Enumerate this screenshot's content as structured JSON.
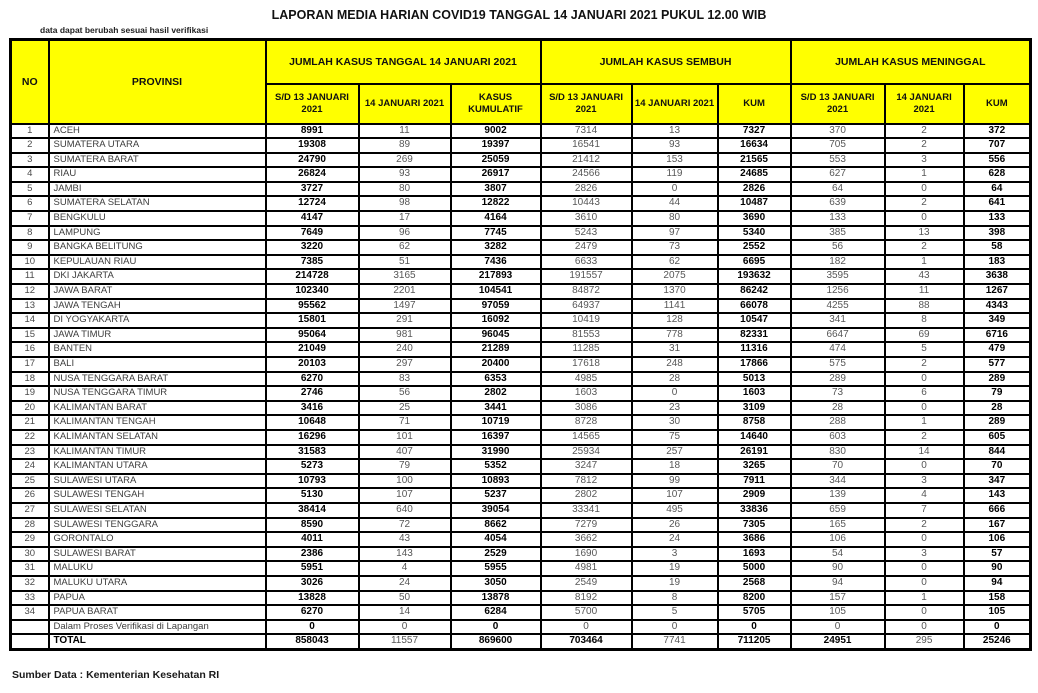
{
  "title": "LAPORAN MEDIA HARIAN COVID19 TANGGAL 14 JANUARI 2021 PUKUL 12.00 WIB",
  "subtitle": "data dapat berubah sesuai hasil verifikasi",
  "footer": "Sumber Data : Kementerian Kesehatan RI",
  "colors": {
    "header_bg": "#FFFF00",
    "border": "#000000",
    "bold_text": "#000000",
    "muted_text": "#575757"
  },
  "table": {
    "col_headers": {
      "no": "NO",
      "provinsi": "PROVINSI",
      "group_kasus": "JUMLAH KASUS TANGGAL 14 JANUARI 2021",
      "group_sembuh": "JUMLAH KASUS SEMBUH",
      "group_meninggal": "JUMLAH KASUS MENINGGAL",
      "sub_sd13": "S/D 13 JANUARI 2021",
      "sub_14jan": "14 JANUARI 2021",
      "sub_kumulatif": "KASUS KUMULATIF",
      "sub_kum": "KUM"
    },
    "value_columns": [
      "sd13_kasus",
      "14jan_kasus",
      "kasus_kumulatif",
      "sd13_sembuh",
      "14jan_sembuh",
      "kum_sembuh",
      "sd13_meninggal",
      "14jan_meninggal",
      "kum_meninggal"
    ],
    "rows": [
      {
        "no": "1",
        "provinsi": "ACEH",
        "values": [
          "8991",
          "11",
          "9002",
          "7314",
          "13",
          "7327",
          "370",
          "2",
          "372"
        ]
      },
      {
        "no": "2",
        "provinsi": "SUMATERA UTARA",
        "values": [
          "19308",
          "89",
          "19397",
          "16541",
          "93",
          "16634",
          "705",
          "2",
          "707"
        ]
      },
      {
        "no": "3",
        "provinsi": "SUMATERA BARAT",
        "values": [
          "24790",
          "269",
          "25059",
          "21412",
          "153",
          "21565",
          "553",
          "3",
          "556"
        ]
      },
      {
        "no": "4",
        "provinsi": "RIAU",
        "values": [
          "26824",
          "93",
          "26917",
          "24566",
          "119",
          "24685",
          "627",
          "1",
          "628"
        ]
      },
      {
        "no": "5",
        "provinsi": "JAMBI",
        "values": [
          "3727",
          "80",
          "3807",
          "2826",
          "0",
          "2826",
          "64",
          "0",
          "64"
        ]
      },
      {
        "no": "6",
        "provinsi": "SUMATERA SELATAN",
        "values": [
          "12724",
          "98",
          "12822",
          "10443",
          "44",
          "10487",
          "639",
          "2",
          "641"
        ]
      },
      {
        "no": "7",
        "provinsi": "BENGKULU",
        "values": [
          "4147",
          "17",
          "4164",
          "3610",
          "80",
          "3690",
          "133",
          "0",
          "133"
        ]
      },
      {
        "no": "8",
        "provinsi": "LAMPUNG",
        "values": [
          "7649",
          "96",
          "7745",
          "5243",
          "97",
          "5340",
          "385",
          "13",
          "398"
        ]
      },
      {
        "no": "9",
        "provinsi": "BANGKA BELITUNG",
        "values": [
          "3220",
          "62",
          "3282",
          "2479",
          "73",
          "2552",
          "56",
          "2",
          "58"
        ]
      },
      {
        "no": "10",
        "provinsi": "KEPULAUAN RIAU",
        "values": [
          "7385",
          "51",
          "7436",
          "6633",
          "62",
          "6695",
          "182",
          "1",
          "183"
        ]
      },
      {
        "no": "11",
        "provinsi": "DKI JAKARTA",
        "values": [
          "214728",
          "3165",
          "217893",
          "191557",
          "2075",
          "193632",
          "3595",
          "43",
          "3638"
        ]
      },
      {
        "no": "12",
        "provinsi": "JAWA BARAT",
        "values": [
          "102340",
          "2201",
          "104541",
          "84872",
          "1370",
          "86242",
          "1256",
          "11",
          "1267"
        ]
      },
      {
        "no": "13",
        "provinsi": "JAWA TENGAH",
        "values": [
          "95562",
          "1497",
          "97059",
          "64937",
          "1141",
          "66078",
          "4255",
          "88",
          "4343"
        ]
      },
      {
        "no": "14",
        "provinsi": "DI YOGYAKARTA",
        "values": [
          "15801",
          "291",
          "16092",
          "10419",
          "128",
          "10547",
          "341",
          "8",
          "349"
        ]
      },
      {
        "no": "15",
        "provinsi": "JAWA TIMUR",
        "values": [
          "95064",
          "981",
          "96045",
          "81553",
          "778",
          "82331",
          "6647",
          "69",
          "6716"
        ]
      },
      {
        "no": "16",
        "provinsi": "BANTEN",
        "values": [
          "21049",
          "240",
          "21289",
          "11285",
          "31",
          "11316",
          "474",
          "5",
          "479"
        ]
      },
      {
        "no": "17",
        "provinsi": "BALI",
        "values": [
          "20103",
          "297",
          "20400",
          "17618",
          "248",
          "17866",
          "575",
          "2",
          "577"
        ]
      },
      {
        "no": "18",
        "provinsi": "NUSA TENGGARA BARAT",
        "values": [
          "6270",
          "83",
          "6353",
          "4985",
          "28",
          "5013",
          "289",
          "0",
          "289"
        ]
      },
      {
        "no": "19",
        "provinsi": "NUSA TENGGARA TIMUR",
        "values": [
          "2746",
          "56",
          "2802",
          "1603",
          "0",
          "1603",
          "73",
          "6",
          "79"
        ]
      },
      {
        "no": "20",
        "provinsi": "KALIMANTAN BARAT",
        "values": [
          "3416",
          "25",
          "3441",
          "3086",
          "23",
          "3109",
          "28",
          "0",
          "28"
        ]
      },
      {
        "no": "21",
        "provinsi": "KALIMANTAN TENGAH",
        "values": [
          "10648",
          "71",
          "10719",
          "8728",
          "30",
          "8758",
          "288",
          "1",
          "289"
        ]
      },
      {
        "no": "22",
        "provinsi": "KALIMANTAN SELATAN",
        "values": [
          "16296",
          "101",
          "16397",
          "14565",
          "75",
          "14640",
          "603",
          "2",
          "605"
        ]
      },
      {
        "no": "23",
        "provinsi": "KALIMANTAN TIMUR",
        "values": [
          "31583",
          "407",
          "31990",
          "25934",
          "257",
          "26191",
          "830",
          "14",
          "844"
        ]
      },
      {
        "no": "24",
        "provinsi": "KALIMANTAN UTARA",
        "values": [
          "5273",
          "79",
          "5352",
          "3247",
          "18",
          "3265",
          "70",
          "0",
          "70"
        ]
      },
      {
        "no": "25",
        "provinsi": "SULAWESI UTARA",
        "values": [
          "10793",
          "100",
          "10893",
          "7812",
          "99",
          "7911",
          "344",
          "3",
          "347"
        ]
      },
      {
        "no": "26",
        "provinsi": "SULAWESI TENGAH",
        "values": [
          "5130",
          "107",
          "5237",
          "2802",
          "107",
          "2909",
          "139",
          "4",
          "143"
        ]
      },
      {
        "no": "27",
        "provinsi": "SULAWESI SELATAN",
        "values": [
          "38414",
          "640",
          "39054",
          "33341",
          "495",
          "33836",
          "659",
          "7",
          "666"
        ]
      },
      {
        "no": "28",
        "provinsi": "SULAWESI TENGGARA",
        "values": [
          "8590",
          "72",
          "8662",
          "7279",
          "26",
          "7305",
          "165",
          "2",
          "167"
        ]
      },
      {
        "no": "29",
        "provinsi": "GORONTALO",
        "values": [
          "4011",
          "43",
          "4054",
          "3662",
          "24",
          "3686",
          "106",
          "0",
          "106"
        ]
      },
      {
        "no": "30",
        "provinsi": "SULAWESI BARAT",
        "values": [
          "2386",
          "143",
          "2529",
          "1690",
          "3",
          "1693",
          "54",
          "3",
          "57"
        ]
      },
      {
        "no": "31",
        "provinsi": "MALUKU",
        "values": [
          "5951",
          "4",
          "5955",
          "4981",
          "19",
          "5000",
          "90",
          "0",
          "90"
        ]
      },
      {
        "no": "32",
        "provinsi": "MALUKU UTARA",
        "values": [
          "3026",
          "24",
          "3050",
          "2549",
          "19",
          "2568",
          "94",
          "0",
          "94"
        ]
      },
      {
        "no": "33",
        "provinsi": "PAPUA",
        "values": [
          "13828",
          "50",
          "13878",
          "8192",
          "8",
          "8200",
          "157",
          "1",
          "158"
        ]
      },
      {
        "no": "34",
        "provinsi": "PAPUA BARAT",
        "values": [
          "6270",
          "14",
          "6284",
          "5700",
          "5",
          "5705",
          "105",
          "0",
          "105"
        ]
      }
    ],
    "verification_row": {
      "label": "Dalam Proses Verifikasi di Lapangan",
      "values": [
        "0",
        "0",
        "0",
        "0",
        "0",
        "0",
        "0",
        "0",
        "0"
      ]
    },
    "total_row": {
      "label": "TOTAL",
      "values": [
        "858043",
        "11557",
        "869600",
        "703464",
        "7741",
        "711205",
        "24951",
        "295",
        "25246"
      ]
    }
  }
}
